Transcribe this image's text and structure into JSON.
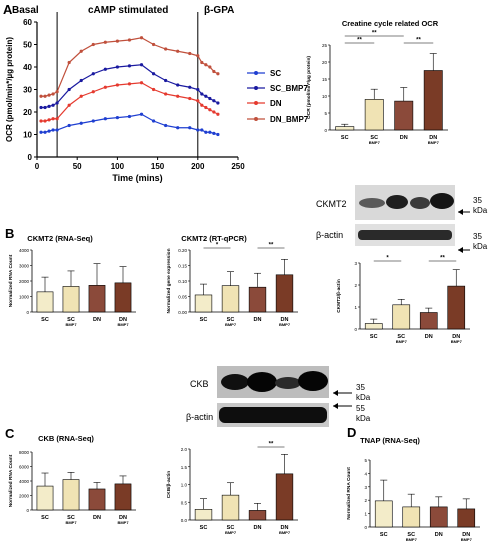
{
  "colors": {
    "sc": "#f3ecc9",
    "bmp7": "#f0e3b4",
    "dn": "#8b4a3a",
    "dn_bmp7": "#7a3b26",
    "line_sc": "#1f3fd1",
    "line_scbmp7": "#1a1aa0",
    "line_dn": "#e53a2f",
    "line_dnbmp7": "#c0503c"
  },
  "panels": {
    "A": "A",
    "B": "B",
    "C": "C",
    "D": "D"
  },
  "chart_data": [
    {
      "type": "line",
      "panel": "A",
      "xlabel": "Time (mins)",
      "ylabel": "OCR (pmol/min*/µg protein)",
      "xlim": [
        0,
        250
      ],
      "ylim": [
        0,
        60
      ],
      "xticks": [
        "0",
        "50",
        "100",
        "150",
        "200",
        "250"
      ],
      "yticks": [
        "0",
        "10",
        "20",
        "30",
        "40",
        "50",
        "60"
      ],
      "annotations": {
        "basal": "Basal",
        "camp": "cAMP stimulated",
        "gpa": "β-GPA"
      },
      "markers_x": [
        25,
        200
      ],
      "series": [
        {
          "name": "SC",
          "color": "#1f3fd1",
          "x": [
            5,
            10,
            15,
            20,
            25,
            40,
            55,
            70,
            85,
            100,
            115,
            130,
            145,
            160,
            175,
            190,
            200,
            205,
            210,
            215,
            220,
            225
          ],
          "y": [
            11,
            11,
            11.5,
            12,
            12,
            14,
            15,
            16,
            17,
            17.5,
            18,
            19,
            16,
            14,
            13,
            13,
            12,
            12,
            11,
            11,
            10.5,
            10
          ]
        },
        {
          "name": "SC_BMP7",
          "color": "#1a1aa0",
          "x": [
            5,
            10,
            15,
            20,
            25,
            40,
            55,
            70,
            85,
            100,
            115,
            130,
            145,
            160,
            175,
            190,
            200,
            205,
            210,
            215,
            220,
            225
          ],
          "y": [
            22,
            22,
            22.5,
            23,
            24,
            30,
            34,
            37,
            39,
            40,
            40.5,
            41,
            37,
            34,
            32,
            31,
            30,
            28,
            27,
            26,
            25,
            24
          ]
        },
        {
          "name": "DN",
          "color": "#e53a2f",
          "x": [
            5,
            10,
            15,
            20,
            25,
            40,
            55,
            70,
            85,
            100,
            115,
            130,
            145,
            160,
            175,
            190,
            200,
            205,
            210,
            215,
            220,
            225
          ],
          "y": [
            16,
            16,
            16.5,
            17,
            17,
            23,
            27,
            29,
            31,
            32,
            32.5,
            33,
            30,
            28,
            27,
            26,
            25,
            23,
            22,
            21,
            20,
            19
          ]
        },
        {
          "name": "DN_BMP7",
          "color": "#c0503c",
          "x": [
            5,
            10,
            15,
            20,
            25,
            40,
            55,
            70,
            85,
            100,
            115,
            130,
            145,
            160,
            175,
            190,
            200,
            205,
            210,
            215,
            220,
            225
          ],
          "y": [
            27,
            27,
            27.5,
            28,
            29,
            42,
            47,
            50,
            51,
            51.5,
            52,
            53,
            50,
            48,
            47,
            46,
            45,
            42,
            41,
            40,
            38,
            37
          ]
        }
      ]
    },
    {
      "type": "bar",
      "panel": "A-right",
      "title": "Creatine cycle related OCR",
      "ylabel": "OCR (pmol/min*/µg protein)",
      "ylim": [
        0,
        25
      ],
      "yticks": [
        "0",
        "5",
        "10",
        "15",
        "20",
        "25"
      ],
      "categories": [
        "SC",
        "SC BMP7",
        "DN",
        "DN BMP7"
      ],
      "values": [
        1,
        9,
        8.5,
        17.5
      ],
      "errors": [
        0.7,
        3,
        4,
        5
      ],
      "sig": [
        {
          "from": 0,
          "to": 1,
          "label": "**",
          "level": 0
        },
        {
          "from": 0,
          "to": 2,
          "label": "**",
          "level": 1
        },
        {
          "from": 2,
          "to": 3,
          "label": "**",
          "level": 0
        }
      ]
    },
    {
      "type": "bar",
      "panel": "B1",
      "title": "CKMT2 (RNA-Seq)",
      "ylabel": "Normalized RNA Count",
      "ylim": [
        0,
        4000
      ],
      "yticks": [
        "0",
        "1000",
        "2000",
        "3000",
        "4000"
      ],
      "categories": [
        "SC",
        "SC BMP7",
        "DN",
        "DN BMP7"
      ],
      "values": [
        1300,
        1650,
        1720,
        1880
      ],
      "errors": [
        950,
        1000,
        1400,
        1050
      ],
      "sig": []
    },
    {
      "type": "bar",
      "panel": "B2",
      "title": "CKMT2 (RT-qPCR)",
      "ylabel": "Normalized gene expression",
      "ylim": [
        0,
        0.2
      ],
      "yticks": [
        "0.00",
        "0.05",
        "0.10",
        "0.15",
        "0.20"
      ],
      "categories": [
        "SC",
        "SC BMP7",
        "DN",
        "DN BMP7"
      ],
      "values": [
        0.055,
        0.085,
        0.08,
        0.12
      ],
      "errors": [
        0.035,
        0.045,
        0.045,
        0.05
      ],
      "sig": [
        {
          "from": 0,
          "to": 1,
          "label": "*",
          "level": 0
        },
        {
          "from": 2,
          "to": 3,
          "label": "**",
          "level": 0
        }
      ]
    },
    {
      "type": "bar",
      "panel": "B3",
      "ylabel": "CKMT2/β-actin",
      "ylim": [
        0,
        3
      ],
      "yticks": [
        "0",
        "1",
        "2",
        "3"
      ],
      "categories": [
        "SC",
        "SC BMP7",
        "DN",
        "DN BMP7"
      ],
      "values": [
        0.25,
        1.1,
        0.75,
        1.95
      ],
      "errors": [
        0.2,
        0.25,
        0.2,
        0.75
      ],
      "sig": [
        {
          "from": 0,
          "to": 1,
          "label": "*",
          "level": 0
        },
        {
          "from": 2,
          "to": 3,
          "label": "**",
          "level": 0
        }
      ]
    },
    {
      "type": "bar",
      "panel": "C1",
      "title": "CKB (RNA-Seq)",
      "ylabel": "Normalized RNA Count",
      "ylim": [
        0,
        8000
      ],
      "yticks": [
        "0",
        "2000",
        "4000",
        "6000",
        "8000"
      ],
      "categories": [
        "SC",
        "SC BMP7",
        "DN",
        "DN BMP7"
      ],
      "values": [
        3300,
        4200,
        2900,
        3600
      ],
      "errors": [
        1800,
        1000,
        900,
        1100
      ],
      "sig": []
    },
    {
      "type": "bar",
      "panel": "C2",
      "ylabel": "CKB/β-actin",
      "ylim": [
        0,
        2
      ],
      "yticks": [
        "0.0",
        "0.5",
        "1.0",
        "1.5",
        "2.0"
      ],
      "categories": [
        "SC",
        "SC BMP7",
        "DN",
        "DN BMP7"
      ],
      "values": [
        0.3,
        0.7,
        0.27,
        1.3
      ],
      "errors": [
        0.3,
        0.35,
        0.2,
        0.55
      ],
      "sig": [
        {
          "from": 2,
          "to": 3,
          "label": "**",
          "level": 0
        }
      ]
    },
    {
      "type": "bar",
      "panel": "D",
      "title": "TNAP (RNA-Seq)",
      "ylabel": "Normalized RNA Count",
      "ylim": [
        0,
        5
      ],
      "yticks": [
        "0",
        "1",
        "2",
        "3",
        "4",
        "5"
      ],
      "categories": [
        "SC",
        "SC BMP7",
        "DN",
        "DN BMP7"
      ],
      "values": [
        1.95,
        1.5,
        1.5,
        1.35
      ],
      "errors": [
        1.55,
        0.95,
        0.75,
        0.75
      ],
      "sig": []
    }
  ],
  "blots": {
    "ckmt2": {
      "label": "CKMT2",
      "actin": "β-actin",
      "mw1": "35",
      "mw1_unit": "kDa",
      "mw2": "35",
      "mw2_unit": "kDa"
    },
    "ckb": {
      "label": "CKB",
      "actin": "β-actin",
      "mw1": "35",
      "mw1_unit": "kDa",
      "mw2": "55",
      "mw2_unit": "kDa"
    }
  }
}
